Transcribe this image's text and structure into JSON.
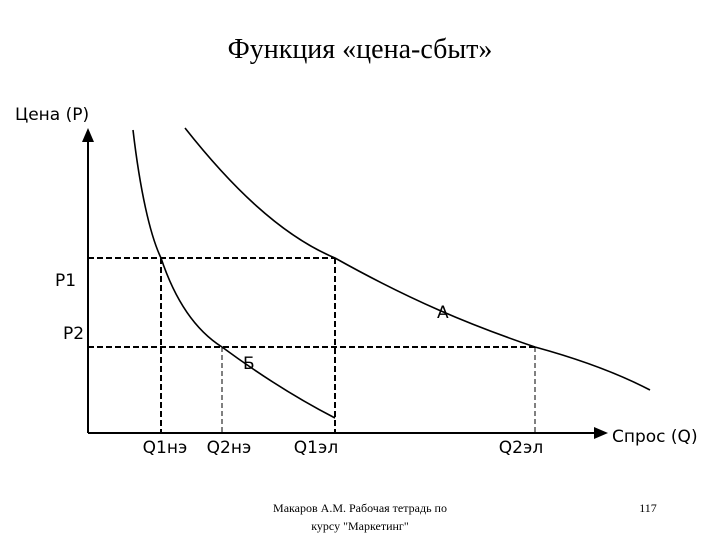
{
  "title": "Функция «цена-сбыт»",
  "axes": {
    "y_label": "Цена (P)",
    "x_label": "Спрос (Q)"
  },
  "price_levels": [
    "P1",
    "P2"
  ],
  "quantity_labels": [
    "Q1нэ",
    "Q2нэ",
    "Q1эл",
    "Q2эл"
  ],
  "curves": {
    "elastic": "А",
    "inelastic": "Б"
  },
  "footer": {
    "lines": [
      "Макаров А.М. Рабочая тетрадь по",
      "курсу \"Маркетинг\""
    ],
    "page_number": "117"
  }
}
